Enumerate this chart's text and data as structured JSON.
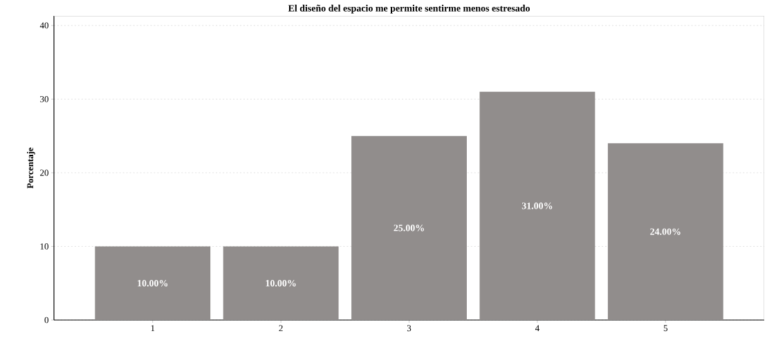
{
  "chart_data": {
    "type": "bar",
    "title": "El diseño del espacio me permite sentirme menos estresado",
    "ylabel": "Porcentaje",
    "categories": [
      "1",
      "2",
      "3",
      "4",
      "5"
    ],
    "values": [
      10,
      10,
      25,
      31,
      24
    ],
    "value_labels": [
      "10.00%",
      "10.00%",
      "25.00%",
      "31.00%",
      "24.00%"
    ],
    "color": "#918d8c",
    "ylim": [
      0,
      41.3
    ],
    "yticks": [
      0,
      10,
      20,
      30,
      40
    ],
    "grid": "y"
  }
}
